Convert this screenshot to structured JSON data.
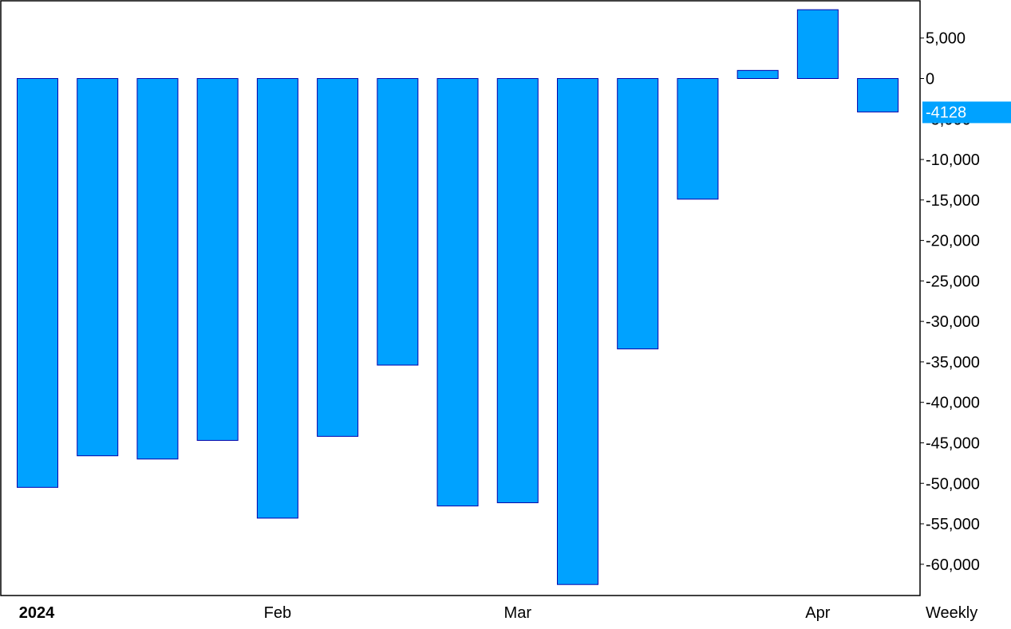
{
  "chart_data": {
    "type": "bar",
    "categories": [
      "",
      "",
      "",
      "",
      "",
      "",
      "",
      "",
      "",
      "",
      "",
      "",
      "",
      "",
      ""
    ],
    "values": [
      -50500,
      -46600,
      -47000,
      -44700,
      -54300,
      -44200,
      -35400,
      -52800,
      -52400,
      -62500,
      -33400,
      -14900,
      1000,
      8500,
      -4128
    ],
    "ylim": [
      -64000,
      9500
    ],
    "yticks": [
      5000,
      0,
      -10000,
      -15000,
      -20000,
      -25000,
      -30000,
      -35000,
      -40000,
      -45000,
      -50000,
      -55000,
      -60000
    ],
    "ytick_labels": [
      "5,000",
      "0",
      "-10,000",
      "-15,000",
      "-20,000",
      "-25,000",
      "-30,000",
      "-35,000",
      "-40,000",
      "-45,000",
      "-50,000",
      "-55,000",
      "-60,000"
    ],
    "hidden_tick_label": "-5,000",
    "last_value_label": "-4128",
    "x_labels": [
      {
        "text": "2024",
        "bold": true,
        "bar_index": 0
      },
      {
        "text": "Feb",
        "bold": false,
        "bar_index": 4
      },
      {
        "text": "Mar",
        "bold": false,
        "bar_index": 8
      },
      {
        "text": "Apr",
        "bold": false,
        "bar_index": 13
      }
    ],
    "period_label": "Weekly",
    "grid": false,
    "colors": {
      "bar_fill": "#00a2ff",
      "bar_stroke": "#0000aa",
      "frame": "#000000",
      "last_value_bg": "#00a2ff",
      "last_value_text": "#ffffff"
    }
  }
}
